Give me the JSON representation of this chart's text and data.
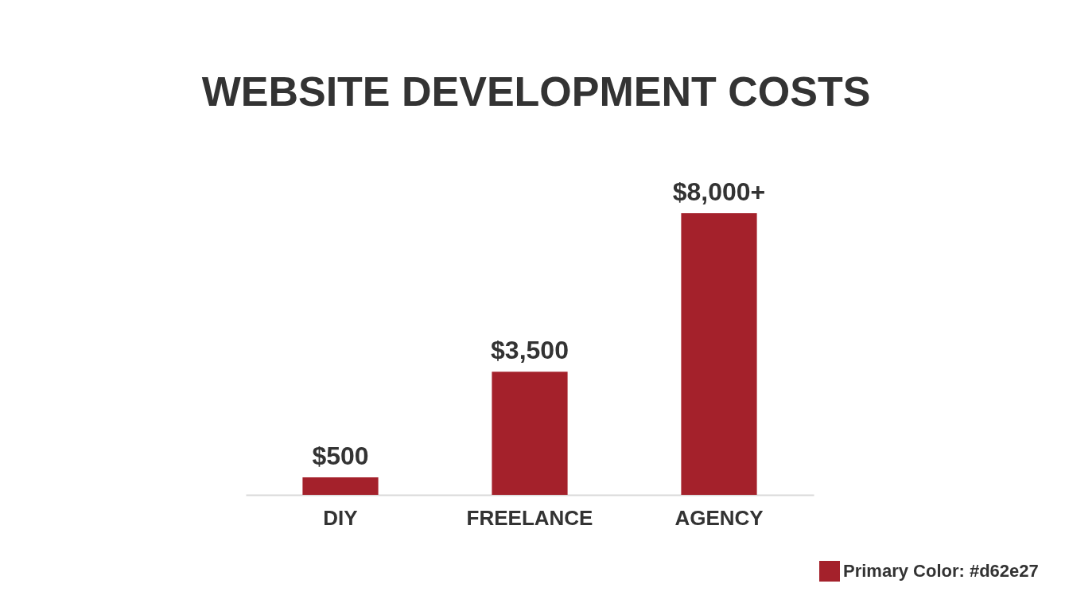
{
  "chart_data": {
    "type": "bar",
    "title": "WEBSITE DEVELOPMENT COSTS",
    "categories": [
      "DIY",
      "FREELANCE",
      "AGENCY"
    ],
    "series": [
      {
        "name": "Primary Color: #d62e27",
        "color": "#a4212b",
        "values": [
          500,
          3500,
          8000
        ],
        "value_labels": [
          "$500",
          "$3,500",
          "$8,000+"
        ]
      }
    ],
    "legend": "bottom right",
    "tick_labels": "x",
    "grid": false
  }
}
